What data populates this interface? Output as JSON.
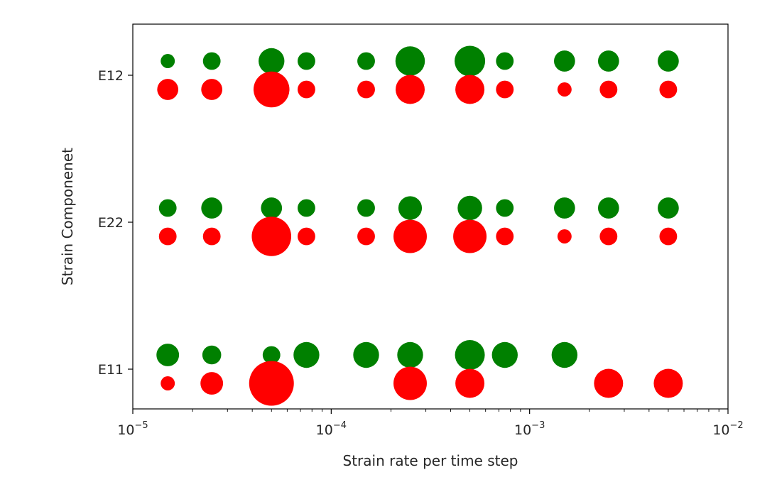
{
  "chart_data": {
    "type": "scatter",
    "title": "",
    "xlabel": "Strain rate per time step",
    "ylabel": "Strain Componenet",
    "xscale": "log",
    "xlim": [
      1e-05,
      0.01
    ],
    "x_ticks": [
      {
        "base": "10",
        "exp": "−5",
        "value": 1e-05
      },
      {
        "base": "10",
        "exp": "−4",
        "value": 0.0001
      },
      {
        "base": "10",
        "exp": "−3",
        "value": 0.001
      },
      {
        "base": "10",
        "exp": "−2",
        "value": 0.01
      }
    ],
    "categories": [
      "E11",
      "E22",
      "E12"
    ],
    "grid": false,
    "legend": "none",
    "colors": {
      "green": "#008000",
      "red": "#ff0000"
    },
    "marker_size_unit": "relative marker area (not printed)",
    "series": [
      {
        "color": "#008000",
        "offset": "above",
        "points": [
          {
            "x": 1.5e-05,
            "y": "E11",
            "size": 230
          },
          {
            "x": 2.5e-05,
            "y": "E11",
            "size": 160
          },
          {
            "x": 5e-05,
            "y": "E11",
            "size": 140
          },
          {
            "x": 7.5e-05,
            "y": "E11",
            "size": 300
          },
          {
            "x": 0.00015,
            "y": "E11",
            "size": 300
          },
          {
            "x": 0.00025,
            "y": "E11",
            "size": 300
          },
          {
            "x": 0.0005,
            "y": "E11",
            "size": 400
          },
          {
            "x": 0.00075,
            "y": "E11",
            "size": 300
          },
          {
            "x": 0.0015,
            "y": "E11",
            "size": 300
          },
          {
            "x": 1.5e-05,
            "y": "E22",
            "size": 140
          },
          {
            "x": 2.5e-05,
            "y": "E22",
            "size": 200
          },
          {
            "x": 5e-05,
            "y": "E22",
            "size": 200
          },
          {
            "x": 7.5e-05,
            "y": "E22",
            "size": 140
          },
          {
            "x": 0.00015,
            "y": "E22",
            "size": 140
          },
          {
            "x": 0.00025,
            "y": "E22",
            "size": 250
          },
          {
            "x": 0.0005,
            "y": "E22",
            "size": 270
          },
          {
            "x": 0.00075,
            "y": "E22",
            "size": 140
          },
          {
            "x": 0.0015,
            "y": "E22",
            "size": 200
          },
          {
            "x": 0.0025,
            "y": "E22",
            "size": 200
          },
          {
            "x": 0.005,
            "y": "E22",
            "size": 200
          },
          {
            "x": 1.5e-05,
            "y": "E12",
            "size": 90
          },
          {
            "x": 2.5e-05,
            "y": "E12",
            "size": 140
          },
          {
            "x": 5e-05,
            "y": "E12",
            "size": 300
          },
          {
            "x": 7.5e-05,
            "y": "E12",
            "size": 140
          },
          {
            "x": 0.00015,
            "y": "E12",
            "size": 140
          },
          {
            "x": 0.00025,
            "y": "E12",
            "size": 390
          },
          {
            "x": 0.0005,
            "y": "E12",
            "size": 420
          },
          {
            "x": 0.00075,
            "y": "E12",
            "size": 140
          },
          {
            "x": 0.0015,
            "y": "E12",
            "size": 200
          },
          {
            "x": 0.0025,
            "y": "E12",
            "size": 200
          },
          {
            "x": 0.005,
            "y": "E12",
            "size": 200
          }
        ]
      },
      {
        "color": "#ff0000",
        "offset": "below",
        "points": [
          {
            "x": 1.5e-05,
            "y": "E11",
            "size": 90
          },
          {
            "x": 2.5e-05,
            "y": "E11",
            "size": 230
          },
          {
            "x": 5e-05,
            "y": "E11",
            "size": 900
          },
          {
            "x": 0.00025,
            "y": "E11",
            "size": 500
          },
          {
            "x": 0.0005,
            "y": "E11",
            "size": 380
          },
          {
            "x": 0.0025,
            "y": "E11",
            "size": 380
          },
          {
            "x": 0.005,
            "y": "E11",
            "size": 380
          },
          {
            "x": 1.5e-05,
            "y": "E22",
            "size": 140
          },
          {
            "x": 2.5e-05,
            "y": "E22",
            "size": 140
          },
          {
            "x": 5e-05,
            "y": "E22",
            "size": 700
          },
          {
            "x": 7.5e-05,
            "y": "E22",
            "size": 140
          },
          {
            "x": 0.00015,
            "y": "E22",
            "size": 140
          },
          {
            "x": 0.00025,
            "y": "E22",
            "size": 500
          },
          {
            "x": 0.0005,
            "y": "E22",
            "size": 500
          },
          {
            "x": 0.00075,
            "y": "E22",
            "size": 140
          },
          {
            "x": 0.0015,
            "y": "E22",
            "size": 90
          },
          {
            "x": 0.0025,
            "y": "E22",
            "size": 140
          },
          {
            "x": 0.005,
            "y": "E22",
            "size": 140
          },
          {
            "x": 1.5e-05,
            "y": "E12",
            "size": 200
          },
          {
            "x": 2.5e-05,
            "y": "E12",
            "size": 200
          },
          {
            "x": 5e-05,
            "y": "E12",
            "size": 580
          },
          {
            "x": 7.5e-05,
            "y": "E12",
            "size": 140
          },
          {
            "x": 0.00015,
            "y": "E12",
            "size": 140
          },
          {
            "x": 0.00025,
            "y": "E12",
            "size": 380
          },
          {
            "x": 0.0005,
            "y": "E12",
            "size": 380
          },
          {
            "x": 0.00075,
            "y": "E12",
            "size": 140
          },
          {
            "x": 0.0015,
            "y": "E12",
            "size": 90
          },
          {
            "x": 0.0025,
            "y": "E12",
            "size": 140
          },
          {
            "x": 0.005,
            "y": "E12",
            "size": 140
          }
        ]
      }
    ]
  }
}
